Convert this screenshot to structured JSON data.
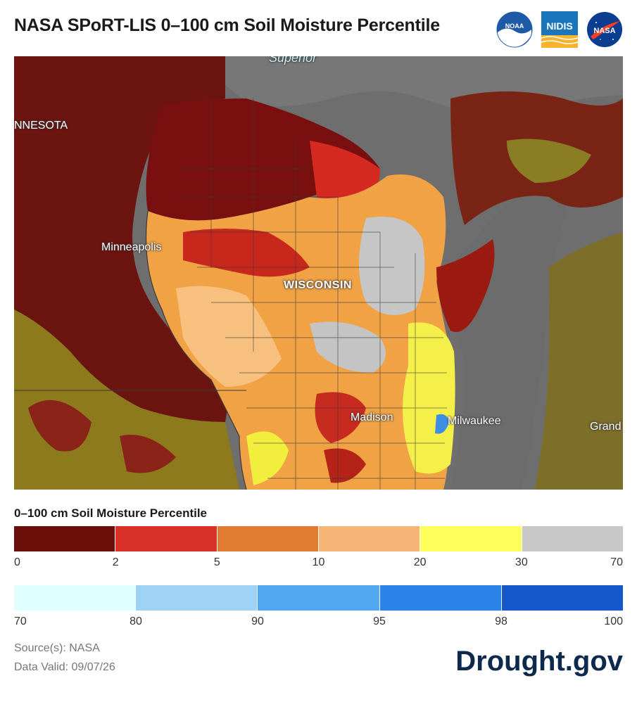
{
  "title": "NASA SPoRT-LIS 0–100 cm Soil Moisture Percentile",
  "logos": [
    {
      "name": "noaa-logo",
      "text": "NOAA"
    },
    {
      "name": "nidis-logo",
      "text": "NIDIS"
    },
    {
      "name": "nasa-logo",
      "text": "NASA"
    }
  ],
  "map": {
    "labels": {
      "superior": "Superior",
      "minnesota": "NNESOTA",
      "minneapolis": "Minneapolis",
      "wisconsin": "WISCONSIN",
      "madison": "Madison",
      "milwaukee": "Milwaukee",
      "grand": "Grand"
    }
  },
  "legend": {
    "title": "0–100 cm Soil Moisture Percentile",
    "row1": {
      "colors": [
        "#6b0f0a",
        "#d9302a",
        "#e07b2f",
        "#f5b577",
        "#ffff5c",
        "#c8c8c8"
      ],
      "ticks": [
        "0",
        "2",
        "5",
        "10",
        "20",
        "30",
        "70"
      ]
    },
    "row2": {
      "colors": [
        "#e0ffff",
        "#9ed3f7",
        "#52a8ee",
        "#2b83e8",
        "#1458cc"
      ],
      "ticks": [
        "70",
        "80",
        "90",
        "95",
        "98",
        "100"
      ]
    }
  },
  "source": "Source(s): NASA",
  "valid": "Data Valid: 09/07/26",
  "brand": "Drought.gov"
}
